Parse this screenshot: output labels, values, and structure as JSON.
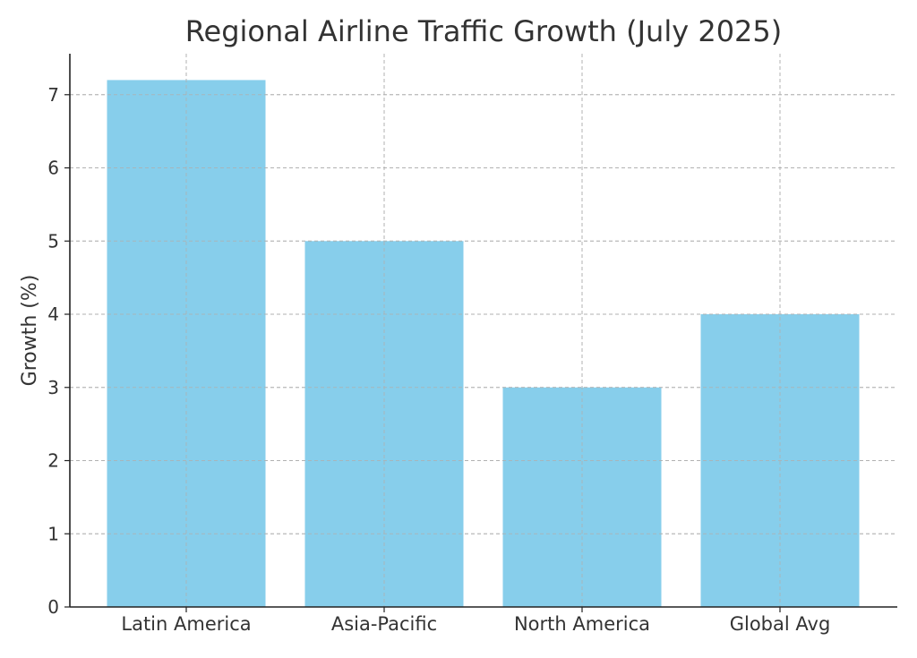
{
  "chart_data": {
    "type": "bar",
    "title": "Regional Airline Traffic Growth (July 2025)",
    "xlabel": "",
    "ylabel": "Growth (%)",
    "categories": [
      "Latin America",
      "Asia-Pacific",
      "North America",
      "Global Avg"
    ],
    "values": [
      7.2,
      5.0,
      3.0,
      4.0
    ],
    "ylim": [
      0,
      7.56
    ],
    "yticks": [
      0,
      1,
      2,
      3,
      4,
      5,
      6,
      7
    ],
    "grid": true,
    "bar_color": "#87CEEB",
    "legend": "none"
  }
}
